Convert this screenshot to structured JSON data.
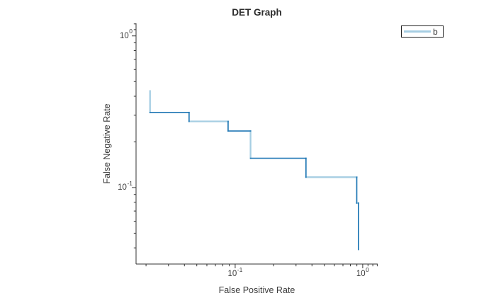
{
  "chart_data": {
    "type": "line",
    "variant": "det-step-curve",
    "title": "DET Graph",
    "xlabel": "False Positive Rate",
    "ylabel": "False Negative Rate",
    "xscale": "log",
    "yscale": "log",
    "xlim": [
      0.0167,
      1.31
    ],
    "ylim": [
      0.0313,
      1.21
    ],
    "grid": false,
    "legend_position": "top-right-outside",
    "axis_color": "#333333",
    "x_major_ticks": [
      {
        "value": 0.1,
        "base": "10",
        "exp": "-1"
      },
      {
        "value": 1,
        "base": "10",
        "exp": "0"
      }
    ],
    "y_major_ticks": [
      {
        "value": 1,
        "base": "10",
        "exp": "0"
      },
      {
        "value": 0.1,
        "base": "10",
        "exp": "-1"
      }
    ],
    "series": [
      {
        "name": "b",
        "color": "#a6cee3",
        "overlay_color": "#1f77b4",
        "points": [
          [
            0.0215,
            0.433
          ],
          [
            0.0215,
            0.313
          ],
          [
            0.0435,
            0.313
          ],
          [
            0.0435,
            0.273
          ],
          [
            0.088,
            0.273
          ],
          [
            0.088,
            0.236
          ],
          [
            0.132,
            0.236
          ],
          [
            0.132,
            0.156
          ],
          [
            0.359,
            0.156
          ],
          [
            0.359,
            0.117
          ],
          [
            0.898,
            0.117
          ],
          [
            0.898,
            0.079
          ],
          [
            0.926,
            0.079
          ],
          [
            0.926,
            0.039
          ]
        ]
      }
    ],
    "segments": [
      {
        "x1": 0.0215,
        "y1": 0.433,
        "x2": 0.0215,
        "y2": 0.313,
        "color": "#a6cee3",
        "width": 2.3
      },
      {
        "x1": 0.0215,
        "y1": 0.313,
        "x2": 0.0435,
        "y2": 0.313,
        "color": "#1f77b4",
        "width": 1.7
      },
      {
        "x1": 0.0435,
        "y1": 0.313,
        "x2": 0.0435,
        "y2": 0.273,
        "color": "#1f77b4",
        "width": 1.7
      },
      {
        "x1": 0.0435,
        "y1": 0.273,
        "x2": 0.088,
        "y2": 0.273,
        "color": "#a6cee3",
        "width": 2.3
      },
      {
        "x1": 0.088,
        "y1": 0.273,
        "x2": 0.088,
        "y2": 0.236,
        "color": "#1f77b4",
        "width": 1.7
      },
      {
        "x1": 0.088,
        "y1": 0.236,
        "x2": 0.132,
        "y2": 0.236,
        "color": "#1f77b4",
        "width": 1.7
      },
      {
        "x1": 0.132,
        "y1": 0.236,
        "x2": 0.132,
        "y2": 0.156,
        "color": "#a6cee3",
        "width": 2.3
      },
      {
        "x1": 0.132,
        "y1": 0.156,
        "x2": 0.359,
        "y2": 0.156,
        "color": "#1f77b4",
        "width": 1.7
      },
      {
        "x1": 0.359,
        "y1": 0.156,
        "x2": 0.359,
        "y2": 0.117,
        "color": "#1f77b4",
        "width": 1.7
      },
      {
        "x1": 0.359,
        "y1": 0.117,
        "x2": 0.898,
        "y2": 0.117,
        "color": "#a6cee3",
        "width": 2.3
      },
      {
        "x1": 0.898,
        "y1": 0.117,
        "x2": 0.898,
        "y2": 0.079,
        "color": "#1f77b4",
        "width": 1.7
      },
      {
        "x1": 0.898,
        "y1": 0.079,
        "x2": 0.926,
        "y2": 0.079,
        "color": "#a6cee3",
        "width": 2.3
      },
      {
        "x1": 0.926,
        "y1": 0.079,
        "x2": 0.926,
        "y2": 0.039,
        "color": "#1f77b4",
        "width": 1.7
      }
    ]
  },
  "legend": {
    "label": "b",
    "line_color": "#a6cee3"
  }
}
